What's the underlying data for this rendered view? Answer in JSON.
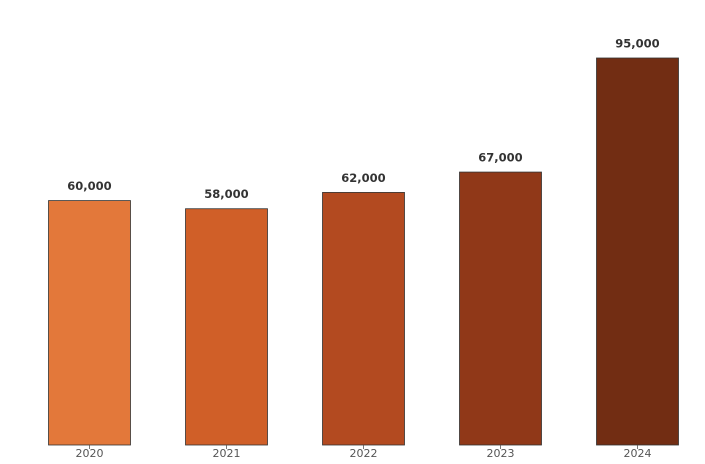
{
  "chart_data": {
    "type": "bar",
    "categories": [
      "2020",
      "2021",
      "2022",
      "2023",
      "2024"
    ],
    "values": [
      60000,
      58000,
      62000,
      67000,
      95000
    ],
    "value_labels": [
      "60,000",
      "58,000",
      "62,000",
      "67,000",
      "95,000"
    ],
    "colors": [
      "#e3783a",
      "#d05f28",
      "#b34a20",
      "#903818",
      "#722d13"
    ]
  }
}
